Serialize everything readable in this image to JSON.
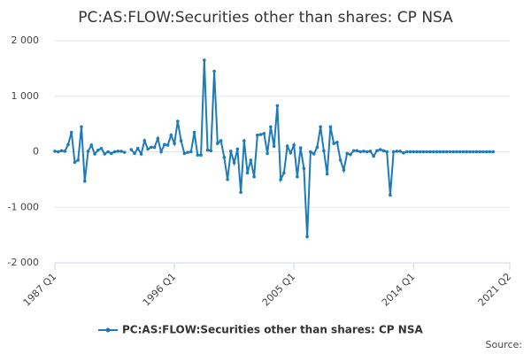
{
  "chart_data": {
    "type": "line",
    "title": "PC:AS:FLOW:Securities other than shares: CP NSA",
    "source": "Source:",
    "x": [
      1987,
      1987.25,
      1987.5,
      1987.75,
      1988,
      1988.25,
      1988.5,
      1988.75,
      1989,
      1989.25,
      1989.5,
      1989.75,
      1990,
      1990.25,
      1990.5,
      1990.75,
      1991,
      1991.25,
      1991.5,
      1991.75,
      1992,
      1992.25,
      1992.5,
      1992.75,
      1993,
      1993.25,
      1993.5,
      1993.75,
      1994,
      1994.25,
      1994.5,
      1994.75,
      1995,
      1995.25,
      1995.5,
      1995.75,
      1996,
      1996.25,
      1996.5,
      1996.75,
      1997,
      1997.25,
      1997.5,
      1997.75,
      1998,
      1998.25,
      1998.5,
      1998.75,
      1999,
      1999.25,
      1999.5,
      1999.75,
      2000,
      2000.25,
      2000.5,
      2000.75,
      2001,
      2001.25,
      2001.5,
      2001.75,
      2002,
      2002.25,
      2002.5,
      2002.75,
      2003,
      2003.25,
      2003.5,
      2003.75,
      2004,
      2004.25,
      2004.5,
      2004.75,
      2005,
      2005.25,
      2005.5,
      2005.75,
      2006,
      2006.25,
      2006.5,
      2006.75,
      2007,
      2007.25,
      2007.5,
      2007.75,
      2008,
      2008.25,
      2008.5,
      2008.75,
      2009,
      2009.25,
      2009.5,
      2009.75,
      2010,
      2010.25,
      2010.5,
      2010.75,
      2011,
      2011.25,
      2011.5,
      2011.75,
      2012,
      2012.25,
      2012.5,
      2012.75,
      2013,
      2013.25,
      2013.5,
      2013.75,
      2014,
      2014.25,
      2014.5,
      2014.75,
      2015,
      2015.25,
      2015.5,
      2015.75,
      2016,
      2016.25,
      2016.5,
      2016.75,
      2017,
      2017.25,
      2017.5,
      2017.75,
      2018,
      2018.25,
      2018.5,
      2018.75,
      2019,
      2019.25,
      2019.5,
      2019.75,
      2020
    ],
    "series": [
      {
        "name": "PC:AS:FLOW:Securities other than shares: CP NSA",
        "color": "#1f7ab5",
        "values": [
          10,
          0,
          20,
          10,
          130,
          350,
          -190,
          -150,
          450,
          -530,
          10,
          120,
          -40,
          30,
          60,
          -40,
          0,
          -30,
          0,
          10,
          10,
          -10,
          null,
          40,
          -30,
          60,
          -40,
          200,
          50,
          80,
          80,
          240,
          0,
          130,
          120,
          300,
          150,
          550,
          200,
          -30,
          -10,
          0,
          350,
          -60,
          -60,
          1650,
          30,
          20,
          1450,
          150,
          200,
          -100,
          -500,
          10,
          -200,
          50,
          -730,
          200,
          -380,
          -150,
          -450,
          300,
          310,
          330,
          -30,
          450,
          100,
          830,
          -500,
          -380,
          100,
          -20,
          120,
          -450,
          70,
          -300,
          -1530,
          0,
          -40,
          80,
          450,
          20,
          -400,
          450,
          150,
          170,
          -150,
          -330,
          -30,
          -50,
          20,
          20,
          0,
          10,
          0,
          10,
          -80,
          20,
          40,
          20,
          0,
          -780,
          0,
          10,
          10,
          -20,
          0,
          0,
          0,
          0,
          0,
          0,
          0,
          0,
          0,
          0,
          0,
          0,
          0,
          0,
          0,
          0,
          0,
          0,
          0,
          0,
          0,
          0,
          0,
          0,
          0,
          0,
          0
        ]
      }
    ],
    "xlim": [
      1987,
      2021.25
    ],
    "xticks": [
      {
        "value": 1987,
        "label": "1987 Q1"
      },
      {
        "value": 1996,
        "label": "1996 Q1"
      },
      {
        "value": 2005,
        "label": "2005 Q1"
      },
      {
        "value": 2014,
        "label": "2014 Q1"
      },
      {
        "value": 2021.25,
        "label": "2021 Q2"
      }
    ],
    "ylim": [
      -2000,
      2000
    ],
    "yticks": [
      {
        "value": -2000,
        "label": "-2 000"
      },
      {
        "value": -1000,
        "label": "-1 000"
      },
      0,
      {
        "value": 1000,
        "label": "1 000"
      },
      {
        "value": 2000,
        "label": "2 000"
      }
    ],
    "grid": true
  }
}
